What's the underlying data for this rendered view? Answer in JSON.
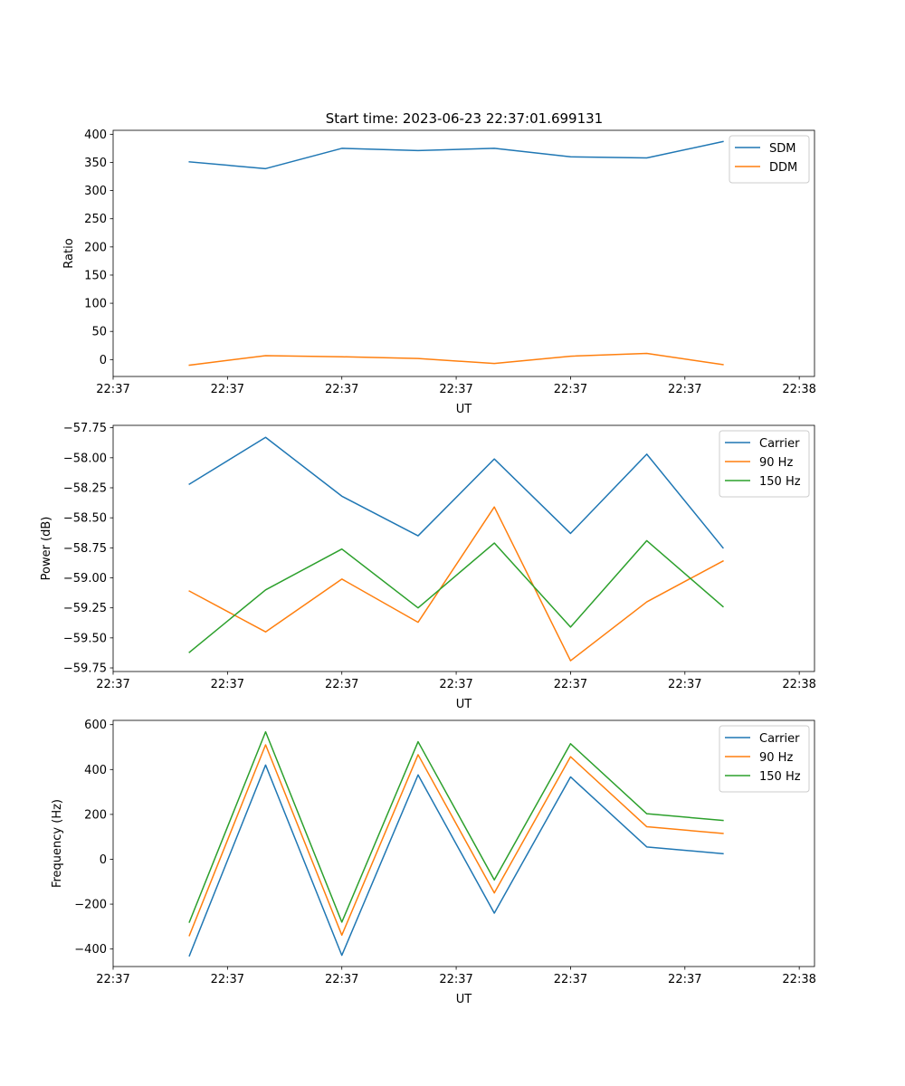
{
  "figure": {
    "title": "Start time: 2023-06-23 22:37:01.699131"
  },
  "chart_data": [
    {
      "type": "line",
      "title": "Start time: 2023-06-23 22:37:01.699131",
      "xlabel": "UT",
      "ylabel": "Ratio",
      "x": [
        0.5,
        1.0,
        1.5,
        2.0,
        2.5,
        3.0,
        3.5,
        4.0
      ],
      "xlim": [
        0.0,
        4.6
      ],
      "xticks": [
        0.0,
        0.75,
        1.5,
        2.25,
        3.0,
        3.75,
        4.5
      ],
      "xtick_labels": [
        "22:37",
        "22:37",
        "22:37",
        "22:37",
        "22:37",
        "22:37",
        "22:38"
      ],
      "ylim": [
        -30,
        407
      ],
      "yticks": [
        0,
        50,
        100,
        150,
        200,
        250,
        300,
        350,
        400
      ],
      "ytick_labels": [
        "0",
        "50",
        "100",
        "150",
        "200",
        "250",
        "300",
        "350",
        "400"
      ],
      "legend_position": "top-right",
      "grid": false,
      "series": [
        {
          "name": "SDM",
          "color": "#1f77b4",
          "values": [
            351,
            339,
            375,
            371,
            375,
            360,
            358,
            387
          ]
        },
        {
          "name": "DDM",
          "color": "#ff7f0e",
          "values": [
            -10,
            7,
            5,
            2,
            -7,
            6,
            11,
            -9
          ]
        }
      ]
    },
    {
      "type": "line",
      "title": "",
      "xlabel": "UT",
      "ylabel": "Power (dB)",
      "x": [
        0.5,
        1.0,
        1.5,
        2.0,
        2.5,
        3.0,
        3.5,
        4.0
      ],
      "xlim": [
        0.0,
        4.6
      ],
      "xticks": [
        0.0,
        0.75,
        1.5,
        2.25,
        3.0,
        3.75,
        4.5
      ],
      "xtick_labels": [
        "22:37",
        "22:37",
        "22:37",
        "22:37",
        "22:37",
        "22:37",
        "22:38"
      ],
      "ylim": [
        -59.78,
        -57.73
      ],
      "yticks": [
        -57.75,
        -58.0,
        -58.25,
        -58.5,
        -58.75,
        -59.0,
        -59.25,
        -59.5,
        -59.75
      ],
      "ytick_labels": [
        "−57.75",
        "−58.00",
        "−58.25",
        "−58.50",
        "−58.75",
        "−59.00",
        "−59.25",
        "−59.50",
        "−59.75"
      ],
      "legend_position": "top-right",
      "grid": false,
      "series": [
        {
          "name": "Carrier",
          "color": "#1f77b4",
          "values": [
            -58.22,
            -57.83,
            -58.32,
            -58.65,
            -58.01,
            -58.63,
            -57.97,
            -58.75
          ]
        },
        {
          "name": "90 Hz",
          "color": "#ff7f0e",
          "values": [
            -59.11,
            -59.45,
            -59.01,
            -59.37,
            -58.41,
            -59.69,
            -59.2,
            -58.86
          ]
        },
        {
          "name": "150 Hz",
          "color": "#2ca02c",
          "values": [
            -59.62,
            -59.1,
            -58.76,
            -59.25,
            -58.71,
            -59.41,
            -58.69,
            -59.24
          ]
        }
      ]
    },
    {
      "type": "line",
      "title": "",
      "xlabel": "UT",
      "ylabel": "Frequency (Hz)",
      "x": [
        0.5,
        1.0,
        1.5,
        2.0,
        2.5,
        3.0,
        3.5,
        4.0
      ],
      "xlim": [
        0.0,
        4.6
      ],
      "xticks": [
        0.0,
        0.75,
        1.5,
        2.25,
        3.0,
        3.75,
        4.5
      ],
      "xtick_labels": [
        "22:37",
        "22:37",
        "22:37",
        "22:37",
        "22:37",
        "22:37",
        "22:38"
      ],
      "ylim": [
        -478,
        619
      ],
      "yticks": [
        -400,
        -200,
        0,
        200,
        400,
        600
      ],
      "ytick_labels": [
        "−400",
        "−200",
        "0",
        "200",
        "400",
        "600"
      ],
      "legend_position": "top-right",
      "grid": false,
      "series": [
        {
          "name": "Carrier",
          "color": "#1f77b4",
          "values": [
            -430,
            420,
            -428,
            376,
            -240,
            367,
            55,
            25
          ]
        },
        {
          "name": "90 Hz",
          "color": "#ff7f0e",
          "values": [
            -340,
            510,
            -338,
            466,
            -150,
            457,
            145,
            115
          ]
        },
        {
          "name": "150 Hz",
          "color": "#2ca02c",
          "values": [
            -280,
            568,
            -280,
            524,
            -92,
            515,
            203,
            173
          ]
        }
      ]
    }
  ]
}
